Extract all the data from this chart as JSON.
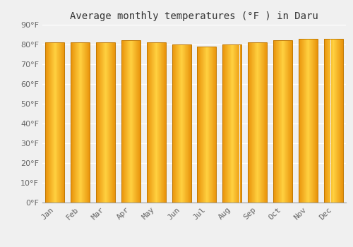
{
  "title": "Average monthly temperatures (°F ) in Daru",
  "months": [
    "Jan",
    "Feb",
    "Mar",
    "Apr",
    "May",
    "Jun",
    "Jul",
    "Aug",
    "Sep",
    "Oct",
    "Nov",
    "Dec"
  ],
  "values": [
    81,
    81,
    81,
    82,
    81,
    80,
    79,
    80,
    81,
    82,
    83,
    83
  ],
  "ylim": [
    0,
    90
  ],
  "yticks": [
    0,
    10,
    20,
    30,
    40,
    50,
    60,
    70,
    80,
    90
  ],
  "bar_color_center": "#FFD040",
  "bar_color_edge": "#E8920A",
  "bar_edge_color": "#C07800",
  "background_color": "#F0F0F0",
  "grid_color": "#FFFFFF",
  "title_fontsize": 10,
  "tick_fontsize": 8,
  "bar_width": 0.75
}
